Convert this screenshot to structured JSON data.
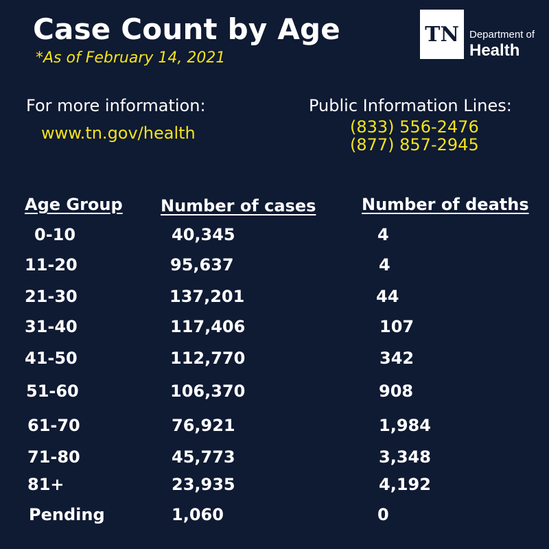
{
  "title": "Case Count by Age",
  "as_of": "*As of February 14, 2021",
  "logo": {
    "abbr": "TN",
    "line1": "Department of",
    "line2": "Health"
  },
  "info": {
    "label": "For more information:",
    "url": "www.tn.gov/health"
  },
  "phones": {
    "label": "Public Information Lines:",
    "numbers": [
      "(833) 556-2476",
      "(877) 857-2945"
    ]
  },
  "colors": {
    "background": "#0f1a33",
    "text": "#ffffff",
    "accent": "#f5e31b"
  },
  "chart_data": {
    "type": "table",
    "title": "Case Count by Age",
    "columns": [
      "Age Group",
      "Number of cases",
      "Number of deaths"
    ],
    "rows": [
      [
        "0-10",
        "40,345",
        "4"
      ],
      [
        "11-20",
        "95,637",
        "4"
      ],
      [
        "21-30",
        "137,201",
        "44"
      ],
      [
        "31-40",
        "117,406",
        "107"
      ],
      [
        "41-50",
        "112,770",
        "342"
      ],
      [
        "51-60",
        "106,370",
        "908"
      ],
      [
        "61-70",
        "76,921",
        "1,984"
      ],
      [
        "71-80",
        "45,773",
        "3,348"
      ],
      [
        "81+",
        "23,935",
        "4,192"
      ],
      [
        "Pending",
        "1,060",
        "0"
      ]
    ]
  }
}
